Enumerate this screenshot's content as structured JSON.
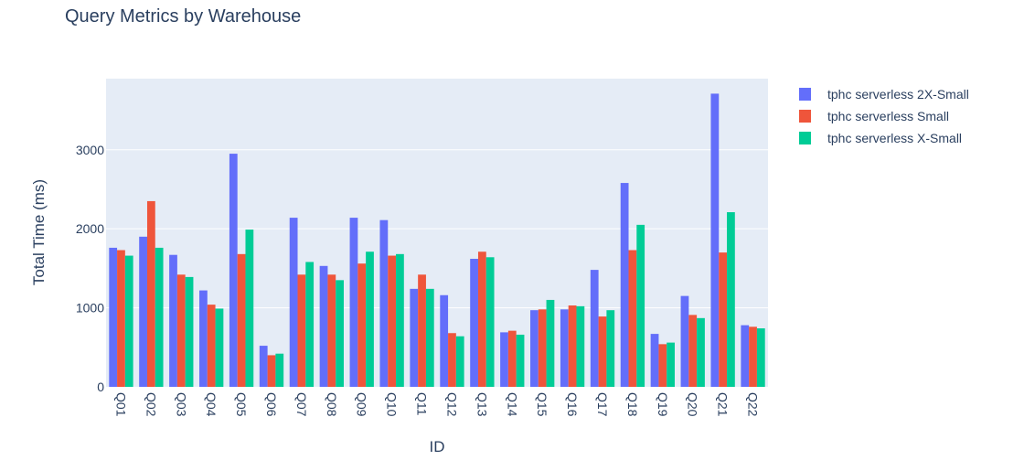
{
  "chart_data": {
    "type": "bar",
    "title": "Query Metrics by Warehouse",
    "xlabel": "ID",
    "ylabel": "Total Time (ms)",
    "ylim": [
      0,
      3900
    ],
    "yticks": [
      0,
      1000,
      2000,
      3000
    ],
    "ytick_labels": [
      "0",
      "1000",
      "2000",
      "3000"
    ],
    "grid": true,
    "legend_position": "top-right",
    "categories": [
      "Q01",
      "Q02",
      "Q03",
      "Q04",
      "Q05",
      "Q06",
      "Q07",
      "Q08",
      "Q09",
      "Q10",
      "Q11",
      "Q12",
      "Q13",
      "Q14",
      "Q15",
      "Q16",
      "Q17",
      "Q18",
      "Q19",
      "Q20",
      "Q21",
      "Q22"
    ],
    "series": [
      {
        "name": "tphc serverless 2X-Small",
        "color": "#636efa",
        "values": [
          1760,
          1900,
          1670,
          1220,
          2950,
          520,
          2140,
          1530,
          2140,
          2110,
          1240,
          1160,
          1620,
          690,
          970,
          980,
          1480,
          2580,
          670,
          1150,
          3710,
          780
        ]
      },
      {
        "name": "tphc serverless Small",
        "color": "#ef553b",
        "values": [
          1730,
          2350,
          1420,
          1040,
          1680,
          400,
          1420,
          1420,
          1560,
          1660,
          1420,
          680,
          1710,
          710,
          980,
          1030,
          890,
          1730,
          540,
          910,
          1700,
          760
        ]
      },
      {
        "name": "tphc serverless X-Small",
        "color": "#00cc96",
        "values": [
          1660,
          1760,
          1390,
          990,
          1990,
          420,
          1580,
          1350,
          1710,
          1680,
          1240,
          640,
          1640,
          660,
          1100,
          1020,
          970,
          2050,
          560,
          870,
          2210,
          740
        ]
      }
    ],
    "colors": {
      "plot_bg": "#e5ecf6",
      "grid": "#ffffff",
      "text": "#2a3f5f"
    }
  }
}
